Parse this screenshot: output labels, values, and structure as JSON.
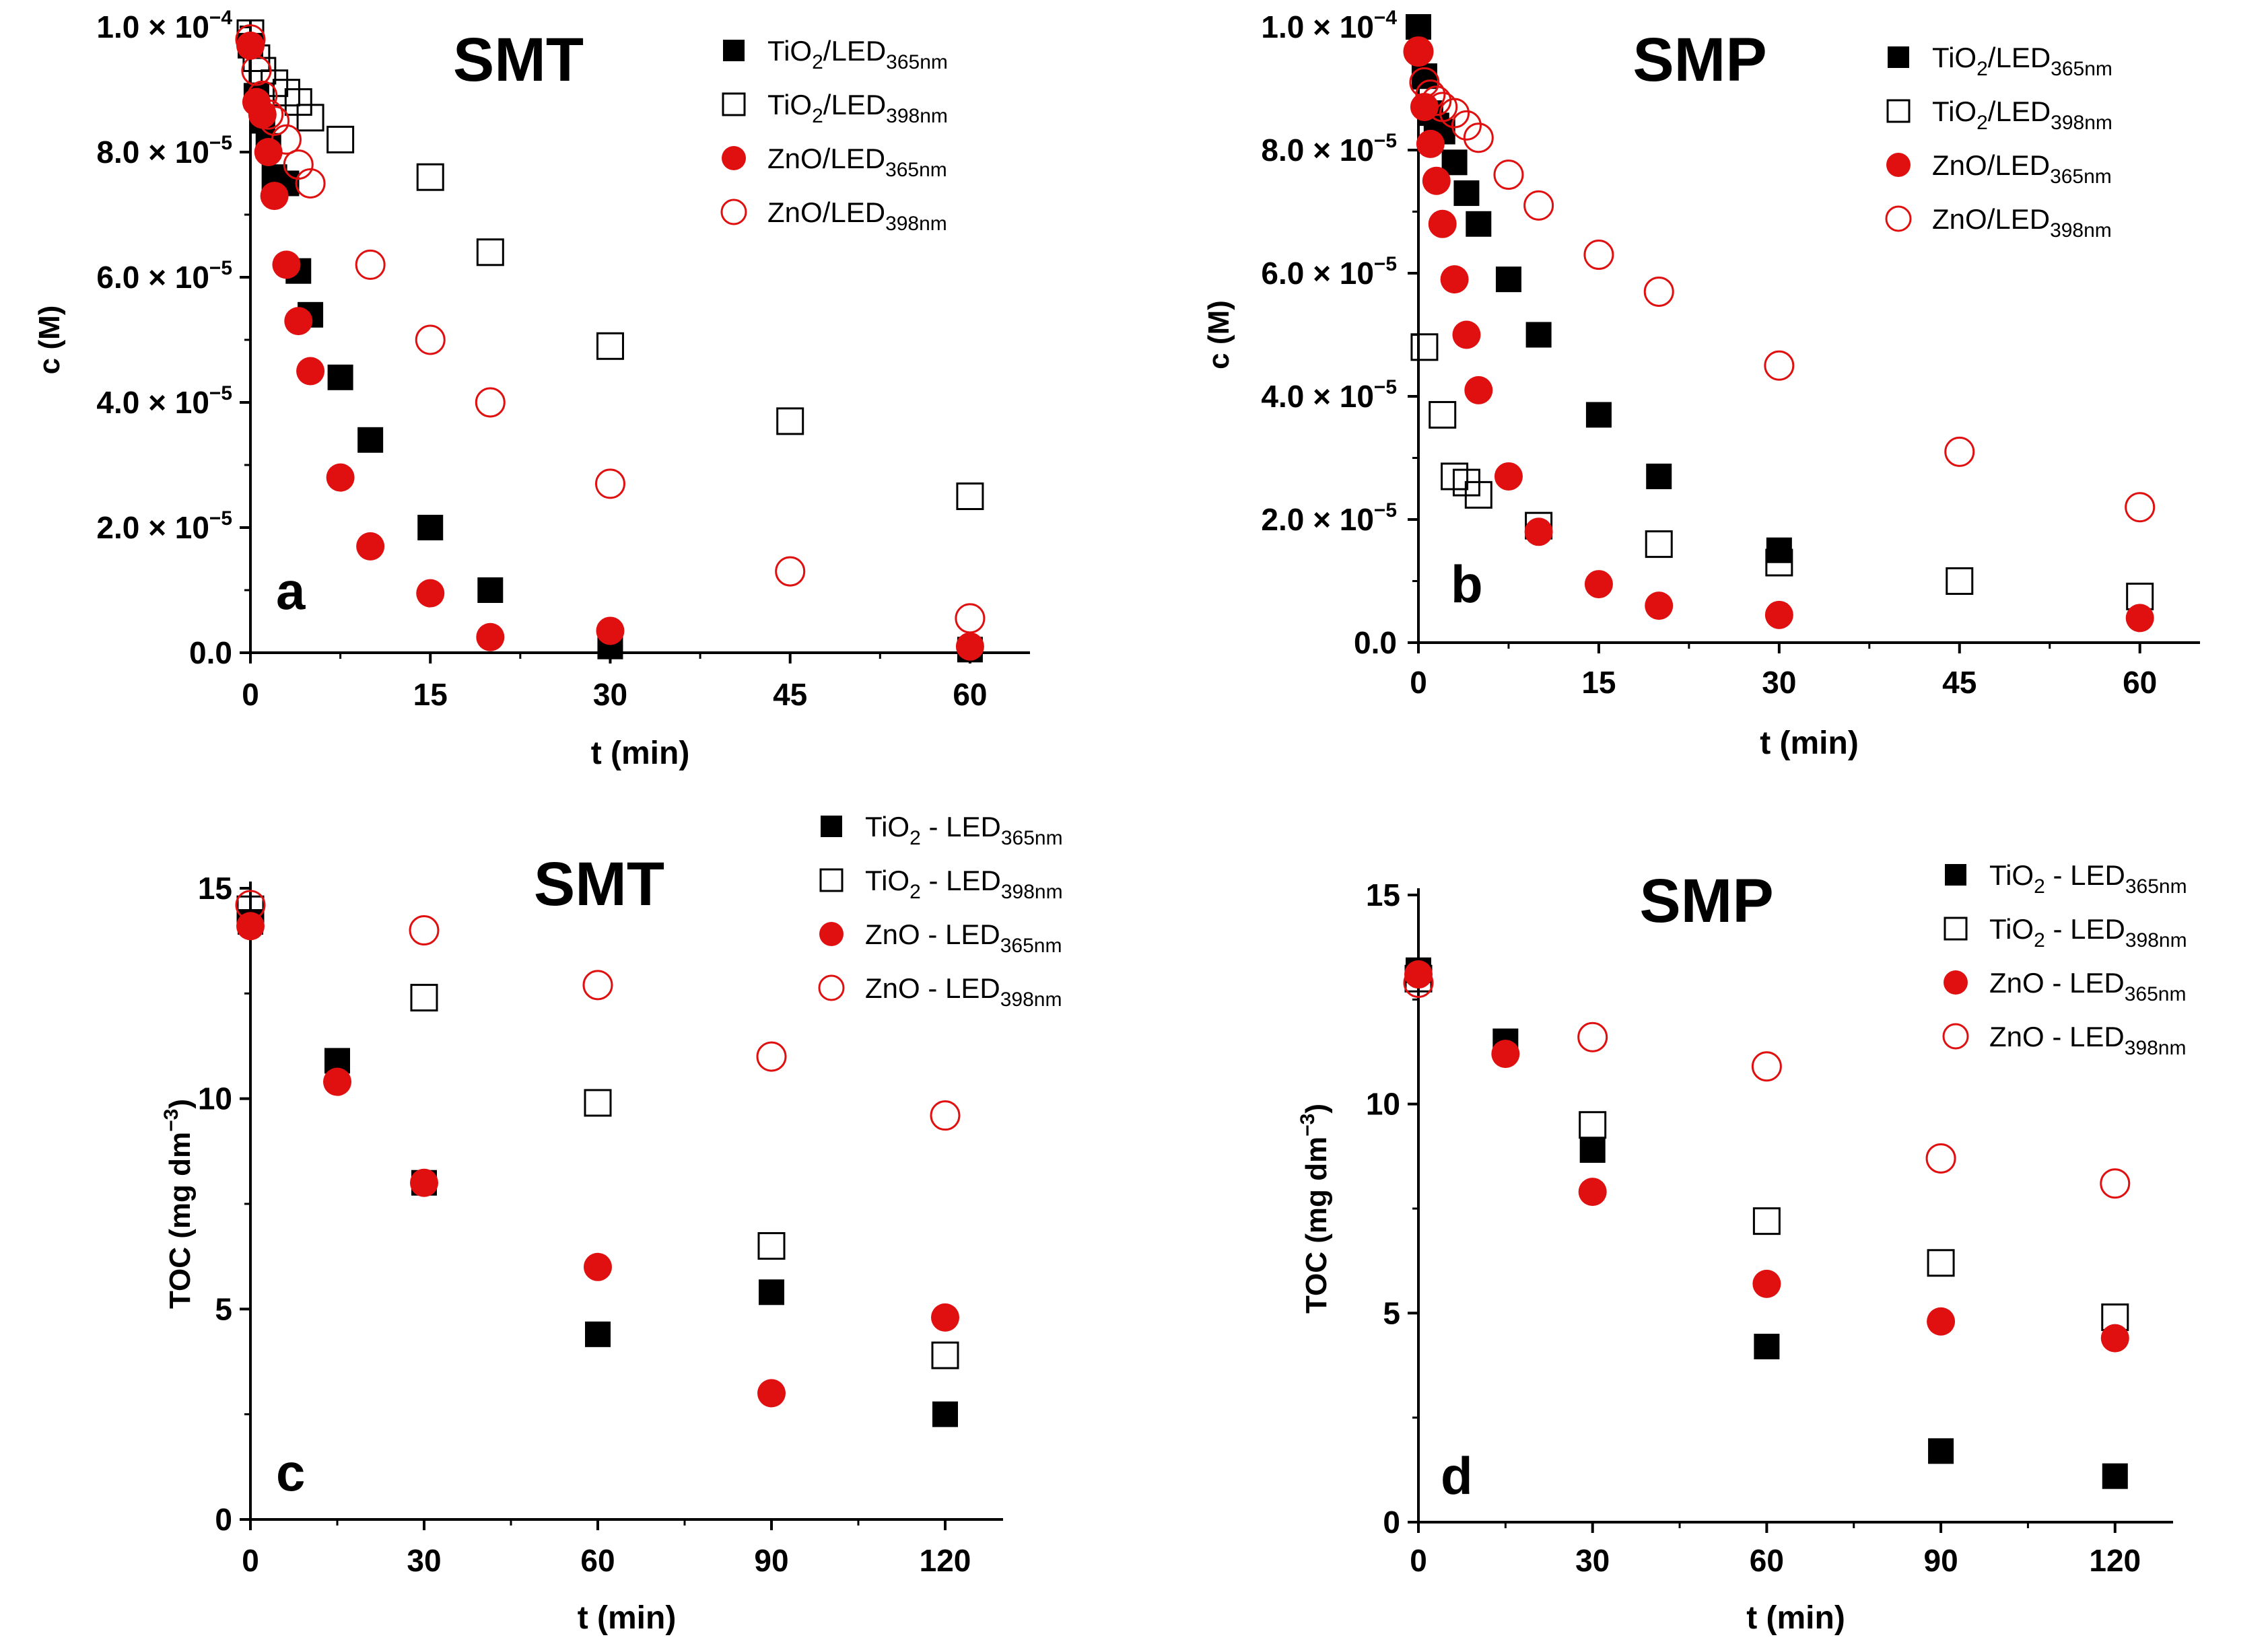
{
  "chart_data": [
    {
      "type": "scatter",
      "panel": "a",
      "title": "SMT",
      "xlabel": "t (min)",
      "ylabel": "c (M)",
      "xlim": [
        0,
        65
      ],
      "ylim": [
        0,
        0.0001
      ],
      "xticks": [
        0,
        15,
        30,
        45,
        60
      ],
      "xtick_labels": [
        "0",
        "15",
        "30",
        "45",
        "60"
      ],
      "yticks": [
        0,
        2e-05,
        4e-05,
        6e-05,
        8e-05,
        0.0001
      ],
      "ytick_labels": [
        {
          "mantissa": "0.0",
          "exp": ""
        },
        {
          "mantissa": "2.0 × 10",
          "exp": "−5"
        },
        {
          "mantissa": "4.0 × 10",
          "exp": "−5"
        },
        {
          "mantissa": "6.0 × 10",
          "exp": "−5"
        },
        {
          "mantissa": "8.0 × 10",
          "exp": "−5"
        },
        {
          "mantissa": "1.0 × 10",
          "exp": "−4"
        }
      ],
      "legend_position": "top-right",
      "series": [
        {
          "name": "TiO2/LED365nm",
          "label": {
            "a": "TiO",
            "b": "2",
            "c": "/LED",
            "d": "365nm"
          },
          "marker": "square",
          "filled": true,
          "color": "#000000",
          "x": [
            0,
            0.5,
            1,
            1.5,
            2,
            3,
            4,
            5,
            7.5,
            10,
            15,
            20,
            30,
            60
          ],
          "y": [
            9.7e-05,
            8.9e-05,
            8.5e-05,
            8.1e-05,
            7.6e-05,
            7.5e-05,
            6.1e-05,
            5.4e-05,
            4.4e-05,
            3.4e-05,
            2e-05,
            1e-05,
            1e-06,
            5e-07
          ]
        },
        {
          "name": "TiO2/LED398nm",
          "label": {
            "a": "TiO",
            "b": "2",
            "c": "/LED",
            "d": "398nm"
          },
          "marker": "square",
          "filled": false,
          "color": "#000000",
          "x": [
            0,
            0.5,
            1,
            2,
            3,
            4,
            5,
            7.5,
            15,
            20,
            30,
            45,
            60
          ],
          "y": [
            9.9e-05,
            9.5e-05,
            9.3e-05,
            9.1e-05,
            8.95e-05,
            8.8e-05,
            8.55e-05,
            8.2e-05,
            7.6e-05,
            6.4e-05,
            4.9e-05,
            3.7e-05,
            2.5e-05
          ]
        },
        {
          "name": "ZnO/LED365nm",
          "label": {
            "a": "ZnO",
            "b": "",
            "c": "/LED",
            "d": "365nm"
          },
          "marker": "circle",
          "filled": true,
          "color": "#e01010",
          "x": [
            0,
            0.5,
            1,
            1.5,
            2,
            3,
            4,
            5,
            7.5,
            10,
            15,
            20,
            30,
            60
          ],
          "y": [
            9.7e-05,
            8.8e-05,
            8.6e-05,
            8e-05,
            7.3e-05,
            6.2e-05,
            5.3e-05,
            4.5e-05,
            2.8e-05,
            1.7e-05,
            9.5e-06,
            2.5e-06,
            3.5e-06,
            1e-06
          ]
        },
        {
          "name": "ZnO/LED398nm",
          "label": {
            "a": "ZnO",
            "b": "",
            "c": "/LED",
            "d": "398nm"
          },
          "marker": "circle",
          "filled": false,
          "color": "#e01010",
          "x": [
            0,
            0.5,
            1,
            1.5,
            2,
            3,
            4,
            5,
            10,
            15,
            20,
            30,
            45,
            60
          ],
          "y": [
            9.8e-05,
            9.3e-05,
            8.9e-05,
            8.6e-05,
            8.5e-05,
            8.2e-05,
            7.8e-05,
            7.5e-05,
            6.2e-05,
            5e-05,
            4e-05,
            2.7e-05,
            1.3e-05,
            5.5e-06
          ]
        }
      ]
    },
    {
      "type": "scatter",
      "panel": "b",
      "title": "SMP",
      "xlabel": "t (min)",
      "ylabel": "c (M)",
      "xlim": [
        0,
        65
      ],
      "ylim": [
        0,
        0.0001
      ],
      "xticks": [
        0,
        15,
        30,
        45,
        60
      ],
      "xtick_labels": [
        "0",
        "15",
        "30",
        "45",
        "60"
      ],
      "yticks": [
        0,
        2e-05,
        4e-05,
        6e-05,
        8e-05,
        0.0001
      ],
      "ytick_labels": [
        {
          "mantissa": "0.0",
          "exp": ""
        },
        {
          "mantissa": "2.0 × 10",
          "exp": "−5"
        },
        {
          "mantissa": "4.0 × 10",
          "exp": "−5"
        },
        {
          "mantissa": "6.0 × 10",
          "exp": "−5"
        },
        {
          "mantissa": "8.0 × 10",
          "exp": "−5"
        },
        {
          "mantissa": "1.0 × 10",
          "exp": "−4"
        }
      ],
      "legend_position": "top-right",
      "series": [
        {
          "name": "TiO2/LED365nm",
          "label": {
            "a": "TiO",
            "b": "2",
            "c": "/LED",
            "d": "365nm"
          },
          "marker": "square",
          "filled": true,
          "color": "#000000",
          "x": [
            0,
            0.5,
            1,
            1.5,
            2,
            3,
            4,
            5,
            7.5,
            10,
            15,
            20,
            30
          ],
          "y": [
            0.0001,
            9.2e-05,
            8.6e-05,
            8.4e-05,
            8.3e-05,
            7.8e-05,
            7.3e-05,
            6.8e-05,
            5.9e-05,
            5e-05,
            3.7e-05,
            2.7e-05,
            1.5e-05
          ]
        },
        {
          "name": "TiO2/LED398nm",
          "label": {
            "a": "TiO",
            "b": "2",
            "c": "/LED",
            "d": "398nm"
          },
          "marker": "square",
          "filled": false,
          "color": "#000000",
          "x": [
            0.5,
            2,
            3,
            4,
            5,
            10,
            20,
            30,
            45,
            60
          ],
          "y": [
            4.8e-05,
            3.7e-05,
            2.7e-05,
            2.6e-05,
            2.4e-05,
            1.9e-05,
            1.6e-05,
            1.3e-05,
            1e-05,
            7.5e-06
          ]
        },
        {
          "name": "ZnO/LED365nm",
          "label": {
            "a": "ZnO",
            "b": "",
            "c": "/LED",
            "d": "365nm"
          },
          "marker": "circle",
          "filled": true,
          "color": "#e01010",
          "x": [
            0,
            0.5,
            1,
            1.5,
            2,
            3,
            4,
            5,
            7.5,
            10,
            15,
            20,
            30,
            60
          ],
          "y": [
            9.6e-05,
            8.7e-05,
            8.1e-05,
            7.5e-05,
            6.8e-05,
            5.9e-05,
            5e-05,
            4.1e-05,
            2.7e-05,
            1.8e-05,
            9.5e-06,
            6e-06,
            4.5e-06,
            4e-06
          ]
        },
        {
          "name": "ZnO/LED398nm",
          "label": {
            "a": "ZnO",
            "b": "",
            "c": "/LED",
            "d": "398nm"
          },
          "marker": "circle",
          "filled": false,
          "color": "#e01010",
          "x": [
            0,
            0.5,
            1,
            1.5,
            2,
            3,
            4,
            5,
            7.5,
            10,
            15,
            20,
            30,
            45,
            60
          ],
          "y": [
            9.6e-05,
            9.1e-05,
            8.9e-05,
            8.8e-05,
            8.7e-05,
            8.6e-05,
            8.4e-05,
            8.2e-05,
            7.6e-05,
            7.1e-05,
            6.3e-05,
            5.7e-05,
            4.5e-05,
            3.1e-05,
            2.2e-05
          ]
        }
      ]
    },
    {
      "type": "scatter",
      "panel": "c",
      "title": "SMT",
      "xlabel": "t (min)",
      "ylabel": "TOC (mg dm",
      "ylabel_sup": "−3",
      "ylabel_end": ")",
      "xlim": [
        0,
        130
      ],
      "ylim": [
        0,
        15
      ],
      "xticks": [
        0,
        30,
        60,
        90,
        120
      ],
      "xtick_labels": [
        "0",
        "30",
        "60",
        "90",
        "120"
      ],
      "yticks": [
        0,
        5,
        10,
        15
      ],
      "ytick_labels": [
        {
          "mantissa": "0",
          "exp": ""
        },
        {
          "mantissa": "5",
          "exp": ""
        },
        {
          "mantissa": "10",
          "exp": ""
        },
        {
          "mantissa": "15",
          "exp": ""
        }
      ],
      "legend_position": "top-right",
      "series": [
        {
          "name": "TiO2 - LED365nm",
          "label": {
            "a": "TiO",
            "b": "2",
            "c": " - LED",
            "d": "365nm"
          },
          "marker": "square",
          "filled": true,
          "color": "#000000",
          "x": [
            0,
            15,
            30,
            60,
            90,
            120
          ],
          "y": [
            14.2,
            10.9,
            8.0,
            4.4,
            5.4,
            2.5
          ]
        },
        {
          "name": "TiO2 - LED398nm",
          "label": {
            "a": "TiO",
            "b": "2",
            "c": " - LED",
            "d": "398nm"
          },
          "marker": "square",
          "filled": false,
          "color": "#000000",
          "x": [
            0,
            30,
            60,
            90,
            120
          ],
          "y": [
            14.5,
            12.4,
            9.9,
            6.5,
            3.9
          ]
        },
        {
          "name": "ZnO - LED365nm",
          "label": {
            "a": "ZnO",
            "b": "",
            "c": " - LED",
            "d": "365nm"
          },
          "marker": "circle",
          "filled": true,
          "color": "#e01010",
          "x": [
            0,
            15,
            30,
            60,
            90,
            120
          ],
          "y": [
            14.1,
            10.4,
            8.0,
            6.0,
            3.0,
            4.8
          ]
        },
        {
          "name": "ZnO - LED398nm",
          "label": {
            "a": "ZnO",
            "b": "",
            "c": " - LED",
            "d": "398nm"
          },
          "marker": "circle",
          "filled": false,
          "color": "#e01010",
          "x": [
            0,
            30,
            60,
            90,
            120
          ],
          "y": [
            14.6,
            14.0,
            12.7,
            11.0,
            9.6
          ]
        }
      ]
    },
    {
      "type": "scatter",
      "panel": "d",
      "title": "SMP",
      "xlabel": "t (min)",
      "ylabel": "TOC (mg dm",
      "ylabel_sup": "−3",
      "ylabel_end": ")",
      "xlim": [
        0,
        130
      ],
      "ylim": [
        0,
        15
      ],
      "xticks": [
        0,
        30,
        60,
        90,
        120
      ],
      "xtick_labels": [
        "0",
        "30",
        "60",
        "90",
        "120"
      ],
      "yticks": [
        0,
        5,
        10,
        15
      ],
      "ytick_labels": [
        {
          "mantissa": "0",
          "exp": ""
        },
        {
          "mantissa": "5",
          "exp": ""
        },
        {
          "mantissa": "10",
          "exp": ""
        },
        {
          "mantissa": "15",
          "exp": ""
        }
      ],
      "legend_position": "top-right",
      "series": [
        {
          "name": "TiO2 - LED365nm",
          "label": {
            "a": "TiO",
            "b": "2",
            "c": " - LED",
            "d": "365nm"
          },
          "marker": "square",
          "filled": true,
          "color": "#000000",
          "x": [
            0,
            15,
            30,
            60,
            90,
            120
          ],
          "y": [
            13.2,
            11.5,
            8.9,
            4.2,
            1.7,
            1.1
          ]
        },
        {
          "name": "TiO2 - LED398nm",
          "label": {
            "a": "TiO",
            "b": "2",
            "c": " - LED",
            "d": "398nm"
          },
          "marker": "square",
          "filled": false,
          "color": "#000000",
          "x": [
            0,
            30,
            60,
            90,
            120
          ],
          "y": [
            13.0,
            9.5,
            7.2,
            6.2,
            4.9
          ]
        },
        {
          "name": "ZnO - LED365nm",
          "label": {
            "a": "ZnO",
            "b": "",
            "c": " - LED",
            "d": "365nm"
          },
          "marker": "circle",
          "filled": true,
          "color": "#e01010",
          "x": [
            0,
            15,
            30,
            60,
            90,
            120
          ],
          "y": [
            13.1,
            11.2,
            7.9,
            5.7,
            4.8,
            4.4
          ]
        },
        {
          "name": "ZnO - LED398nm",
          "label": {
            "a": "ZnO",
            "b": "",
            "c": " - LED",
            "d": "398nm"
          },
          "marker": "circle",
          "filled": false,
          "color": "#e01010",
          "x": [
            0,
            30,
            60,
            90,
            120
          ],
          "y": [
            12.9,
            11.6,
            10.9,
            8.7,
            8.1
          ]
        }
      ]
    }
  ]
}
